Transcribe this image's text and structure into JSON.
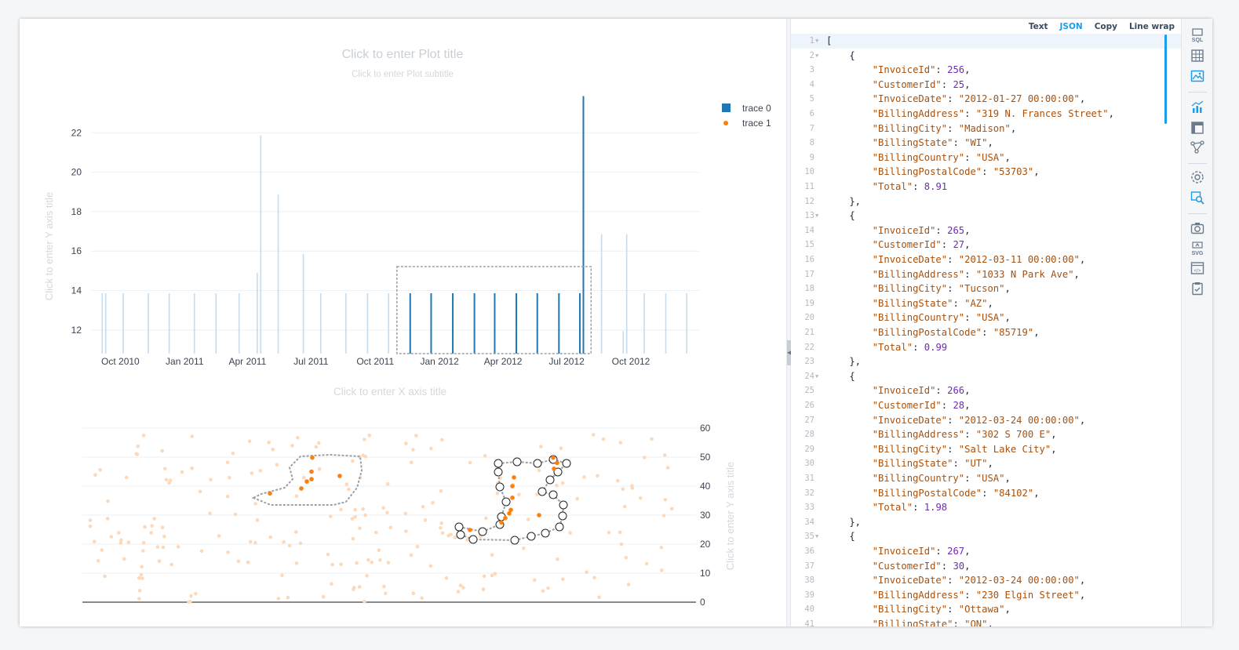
{
  "plot": {
    "title_placeholder": "Click to enter Plot title",
    "subtitle_placeholder": "Click to enter Plot subtitle",
    "x_axis_title_placeholder": "Click to enter X axis title",
    "y_axis_title_placeholder": "Click to enter Y axis title",
    "y2_axis_title_placeholder": "Click to enter Y axis title",
    "legend": [
      {
        "name": "trace 0",
        "symbol": "square",
        "color": "#1f77b4"
      },
      {
        "name": "trace 1",
        "symbol": "dot",
        "color": "#ff7f0e"
      }
    ]
  },
  "chart_data": [
    {
      "type": "bar",
      "legend_placement": "top-right",
      "grid": true,
      "x_ticks": [
        "Oct 2010",
        "Jan 2011",
        "Apr 2011",
        "Jul 2011",
        "Oct 2011",
        "Jan 2012",
        "Apr 2012",
        "Jul 2012",
        "Oct 2012"
      ],
      "y_ticks": [
        12,
        14,
        16,
        18,
        20,
        22
      ],
      "ylim": [
        10.8,
        23.8
      ],
      "series": [
        {
          "name": "trace 0",
          "color": "#1f77b4",
          "x": [
            "2010-09-05",
            "2010-09-10",
            "2010-10-05",
            "2010-11-10",
            "2010-12-10",
            "2011-01-15",
            "2011-02-15",
            "2011-03-20",
            "2011-04-15",
            "2011-04-20",
            "2011-05-15",
            "2011-06-20",
            "2011-07-15",
            "2011-08-20",
            "2011-09-20",
            "2011-10-20",
            "2011-11-20",
            "2011-12-20",
            "2012-01-20",
            "2012-02-20",
            "2012-03-20",
            "2012-04-20",
            "2012-05-20",
            "2012-06-20",
            "2012-07-20",
            "2012-07-25",
            "2012-08-20",
            "2012-09-20",
            "2012-09-25",
            "2012-10-20",
            "2012-11-20",
            "2012-12-20"
          ],
          "y": [
            13.86,
            13.86,
            13.86,
            13.86,
            13.86,
            13.86,
            13.86,
            13.86,
            14.91,
            21.86,
            18.86,
            15.86,
            13.86,
            13.86,
            13.86,
            13.86,
            13.86,
            13.86,
            13.86,
            13.86,
            13.86,
            13.86,
            13.86,
            13.86,
            13.86,
            23.86,
            16.86,
            11.94,
            16.86,
            13.86,
            13.86,
            13.86
          ],
          "selected_x_range": [
            "2011-11-01",
            "2012-08-05"
          ]
        }
      ]
    },
    {
      "type": "scatter",
      "y_ticks": [
        0,
        10,
        20,
        30,
        40,
        50,
        60
      ],
      "ylim": [
        0,
        60
      ],
      "y_axis_side": "right",
      "series": [
        {
          "name": "trace 1",
          "color": "#ff7f0e",
          "selected_points": [
            [
              319,
              37.5
            ],
            [
              359,
              39.2
            ],
            [
              366,
              41.6
            ],
            [
              372,
              42.4
            ],
            [
              372,
              45.0
            ],
            [
              373,
              49.8
            ],
            [
              408,
              43.5
            ],
            [
              574,
              24.9
            ],
            [
              614,
              27.5
            ],
            [
              619,
              29.0
            ],
            [
              624,
              30.6
            ],
            [
              626,
              31.8
            ],
            [
              628,
              36.0
            ],
            [
              628,
              40.0
            ],
            [
              630,
              43.0
            ],
            [
              662,
              30.0
            ],
            [
              680,
              49.8
            ],
            [
              681,
              46.0
            ],
            [
              685,
              48.0
            ]
          ]
        }
      ]
    }
  ],
  "json_view": {
    "tabs": [
      "Text",
      "JSON",
      "Copy",
      "Line wrap"
    ],
    "active_tab": "JSON",
    "lines": [
      {
        "num": "1",
        "fold": true,
        "current": true,
        "parts": [
          [
            "p",
            "["
          ]
        ]
      },
      {
        "num": "2",
        "fold": true,
        "parts": [
          [
            "p",
            "    {"
          ]
        ]
      },
      {
        "num": "3",
        "parts": [
          [
            "p",
            "        "
          ],
          [
            "k",
            "\"InvoiceId\""
          ],
          [
            "p",
            ": "
          ],
          [
            "n",
            "256"
          ],
          [
            "p",
            ","
          ]
        ]
      },
      {
        "num": "4",
        "parts": [
          [
            "p",
            "        "
          ],
          [
            "k",
            "\"CustomerId\""
          ],
          [
            "p",
            ": "
          ],
          [
            "n",
            "25"
          ],
          [
            "p",
            ","
          ]
        ]
      },
      {
        "num": "5",
        "parts": [
          [
            "p",
            "        "
          ],
          [
            "k",
            "\"InvoiceDate\""
          ],
          [
            "p",
            ": "
          ],
          [
            "s",
            "\"2012-01-27 00:00:00\""
          ],
          [
            "p",
            ","
          ]
        ]
      },
      {
        "num": "6",
        "parts": [
          [
            "p",
            "        "
          ],
          [
            "k",
            "\"BillingAddress\""
          ],
          [
            "p",
            ": "
          ],
          [
            "s",
            "\"319 N. Frances Street\""
          ],
          [
            "p",
            ","
          ]
        ]
      },
      {
        "num": "7",
        "parts": [
          [
            "p",
            "        "
          ],
          [
            "k",
            "\"BillingCity\""
          ],
          [
            "p",
            ": "
          ],
          [
            "s",
            "\"Madison\""
          ],
          [
            "p",
            ","
          ]
        ]
      },
      {
        "num": "8",
        "parts": [
          [
            "p",
            "        "
          ],
          [
            "k",
            "\"BillingState\""
          ],
          [
            "p",
            ": "
          ],
          [
            "s",
            "\"WI\""
          ],
          [
            "p",
            ","
          ]
        ]
      },
      {
        "num": "9",
        "parts": [
          [
            "p",
            "        "
          ],
          [
            "k",
            "\"BillingCountry\""
          ],
          [
            "p",
            ": "
          ],
          [
            "s",
            "\"USA\""
          ],
          [
            "p",
            ","
          ]
        ]
      },
      {
        "num": "10",
        "parts": [
          [
            "p",
            "        "
          ],
          [
            "k",
            "\"BillingPostalCode\""
          ],
          [
            "p",
            ": "
          ],
          [
            "s",
            "\"53703\""
          ],
          [
            "p",
            ","
          ]
        ]
      },
      {
        "num": "11",
        "parts": [
          [
            "p",
            "        "
          ],
          [
            "k",
            "\"Total\""
          ],
          [
            "p",
            ": "
          ],
          [
            "n",
            "8.91"
          ]
        ]
      },
      {
        "num": "12",
        "parts": [
          [
            "p",
            "    },"
          ]
        ]
      },
      {
        "num": "13",
        "fold": true,
        "parts": [
          [
            "p",
            "    {"
          ]
        ]
      },
      {
        "num": "14",
        "parts": [
          [
            "p",
            "        "
          ],
          [
            "k",
            "\"InvoiceId\""
          ],
          [
            "p",
            ": "
          ],
          [
            "n",
            "265"
          ],
          [
            "p",
            ","
          ]
        ]
      },
      {
        "num": "15",
        "parts": [
          [
            "p",
            "        "
          ],
          [
            "k",
            "\"CustomerId\""
          ],
          [
            "p",
            ": "
          ],
          [
            "n",
            "27"
          ],
          [
            "p",
            ","
          ]
        ]
      },
      {
        "num": "16",
        "parts": [
          [
            "p",
            "        "
          ],
          [
            "k",
            "\"InvoiceDate\""
          ],
          [
            "p",
            ": "
          ],
          [
            "s",
            "\"2012-03-11 00:00:00\""
          ],
          [
            "p",
            ","
          ]
        ]
      },
      {
        "num": "17",
        "parts": [
          [
            "p",
            "        "
          ],
          [
            "k",
            "\"BillingAddress\""
          ],
          [
            "p",
            ": "
          ],
          [
            "s",
            "\"1033 N Park Ave\""
          ],
          [
            "p",
            ","
          ]
        ]
      },
      {
        "num": "18",
        "parts": [
          [
            "p",
            "        "
          ],
          [
            "k",
            "\"BillingCity\""
          ],
          [
            "p",
            ": "
          ],
          [
            "s",
            "\"Tucson\""
          ],
          [
            "p",
            ","
          ]
        ]
      },
      {
        "num": "19",
        "parts": [
          [
            "p",
            "        "
          ],
          [
            "k",
            "\"BillingState\""
          ],
          [
            "p",
            ": "
          ],
          [
            "s",
            "\"AZ\""
          ],
          [
            "p",
            ","
          ]
        ]
      },
      {
        "num": "20",
        "parts": [
          [
            "p",
            "        "
          ],
          [
            "k",
            "\"BillingCountry\""
          ],
          [
            "p",
            ": "
          ],
          [
            "s",
            "\"USA\""
          ],
          [
            "p",
            ","
          ]
        ]
      },
      {
        "num": "21",
        "parts": [
          [
            "p",
            "        "
          ],
          [
            "k",
            "\"BillingPostalCode\""
          ],
          [
            "p",
            ": "
          ],
          [
            "s",
            "\"85719\""
          ],
          [
            "p",
            ","
          ]
        ]
      },
      {
        "num": "22",
        "parts": [
          [
            "p",
            "        "
          ],
          [
            "k",
            "\"Total\""
          ],
          [
            "p",
            ": "
          ],
          [
            "n",
            "0.99"
          ]
        ]
      },
      {
        "num": "23",
        "parts": [
          [
            "p",
            "    },"
          ]
        ]
      },
      {
        "num": "24",
        "fold": true,
        "parts": [
          [
            "p",
            "    {"
          ]
        ]
      },
      {
        "num": "25",
        "parts": [
          [
            "p",
            "        "
          ],
          [
            "k",
            "\"InvoiceId\""
          ],
          [
            "p",
            ": "
          ],
          [
            "n",
            "266"
          ],
          [
            "p",
            ","
          ]
        ]
      },
      {
        "num": "26",
        "parts": [
          [
            "p",
            "        "
          ],
          [
            "k",
            "\"CustomerId\""
          ],
          [
            "p",
            ": "
          ],
          [
            "n",
            "28"
          ],
          [
            "p",
            ","
          ]
        ]
      },
      {
        "num": "27",
        "parts": [
          [
            "p",
            "        "
          ],
          [
            "k",
            "\"InvoiceDate\""
          ],
          [
            "p",
            ": "
          ],
          [
            "s",
            "\"2012-03-24 00:00:00\""
          ],
          [
            "p",
            ","
          ]
        ]
      },
      {
        "num": "28",
        "parts": [
          [
            "p",
            "        "
          ],
          [
            "k",
            "\"BillingAddress\""
          ],
          [
            "p",
            ": "
          ],
          [
            "s",
            "\"302 S 700 E\""
          ],
          [
            "p",
            ","
          ]
        ]
      },
      {
        "num": "29",
        "parts": [
          [
            "p",
            "        "
          ],
          [
            "k",
            "\"BillingCity\""
          ],
          [
            "p",
            ": "
          ],
          [
            "s",
            "\"Salt Lake City\""
          ],
          [
            "p",
            ","
          ]
        ]
      },
      {
        "num": "30",
        "parts": [
          [
            "p",
            "        "
          ],
          [
            "k",
            "\"BillingState\""
          ],
          [
            "p",
            ": "
          ],
          [
            "s",
            "\"UT\""
          ],
          [
            "p",
            ","
          ]
        ]
      },
      {
        "num": "31",
        "parts": [
          [
            "p",
            "        "
          ],
          [
            "k",
            "\"BillingCountry\""
          ],
          [
            "p",
            ": "
          ],
          [
            "s",
            "\"USA\""
          ],
          [
            "p",
            ","
          ]
        ]
      },
      {
        "num": "32",
        "parts": [
          [
            "p",
            "        "
          ],
          [
            "k",
            "\"BillingPostalCode\""
          ],
          [
            "p",
            ": "
          ],
          [
            "s",
            "\"84102\""
          ],
          [
            "p",
            ","
          ]
        ]
      },
      {
        "num": "33",
        "parts": [
          [
            "p",
            "        "
          ],
          [
            "k",
            "\"Total\""
          ],
          [
            "p",
            ": "
          ],
          [
            "n",
            "1.98"
          ]
        ]
      },
      {
        "num": "34",
        "parts": [
          [
            "p",
            "    },"
          ]
        ]
      },
      {
        "num": "35",
        "fold": true,
        "parts": [
          [
            "p",
            "    {"
          ]
        ]
      },
      {
        "num": "36",
        "parts": [
          [
            "p",
            "        "
          ],
          [
            "k",
            "\"InvoiceId\""
          ],
          [
            "p",
            ": "
          ],
          [
            "n",
            "267"
          ],
          [
            "p",
            ","
          ]
        ]
      },
      {
        "num": "37",
        "parts": [
          [
            "p",
            "        "
          ],
          [
            "k",
            "\"CustomerId\""
          ],
          [
            "p",
            ": "
          ],
          [
            "n",
            "30"
          ],
          [
            "p",
            ","
          ]
        ]
      },
      {
        "num": "38",
        "parts": [
          [
            "p",
            "        "
          ],
          [
            "k",
            "\"InvoiceDate\""
          ],
          [
            "p",
            ": "
          ],
          [
            "s",
            "\"2012-03-24 00:00:00\""
          ],
          [
            "p",
            ","
          ]
        ]
      },
      {
        "num": "39",
        "parts": [
          [
            "p",
            "        "
          ],
          [
            "k",
            "\"BillingAddress\""
          ],
          [
            "p",
            ": "
          ],
          [
            "s",
            "\"230 Elgin Street\""
          ],
          [
            "p",
            ","
          ]
        ]
      },
      {
        "num": "40",
        "parts": [
          [
            "p",
            "        "
          ],
          [
            "k",
            "\"BillingCity\""
          ],
          [
            "p",
            ": "
          ],
          [
            "s",
            "\"Ottawa\""
          ],
          [
            "p",
            ","
          ]
        ]
      },
      {
        "num": "41",
        "parts": [
          [
            "p",
            "        "
          ],
          [
            "k",
            "\"BillingState\""
          ],
          [
            "p",
            ": "
          ],
          [
            "s",
            "\"ON\""
          ],
          [
            "p",
            ","
          ]
        ]
      }
    ]
  },
  "sidebar": {
    "groups": [
      [
        {
          "icon": "sql-icon"
        },
        {
          "icon": "table-icon"
        },
        {
          "icon": "image-icon",
          "active": true
        }
      ],
      [
        {
          "icon": "chart-icon",
          "active": true
        },
        {
          "icon": "pivot-icon"
        },
        {
          "icon": "graph-icon"
        }
      ],
      [
        {
          "icon": "settings-icon"
        },
        {
          "icon": "search-data-icon",
          "active": true
        }
      ],
      [
        {
          "icon": "camera-icon"
        },
        {
          "icon": "svg-export-icon"
        },
        {
          "icon": "html-export-icon"
        },
        {
          "icon": "clipboard-icon"
        }
      ]
    ],
    "accent_color": "#1e9be9"
  }
}
